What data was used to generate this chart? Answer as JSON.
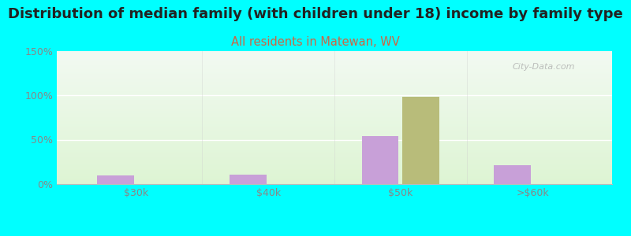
{
  "title": "Distribution of median family (with children under 18) income by family type",
  "subtitle": "All residents in Matewan, WV",
  "categories": [
    "$30k",
    "$40k",
    "$50k",
    ">$60k"
  ],
  "married_couple": [
    10,
    11,
    54,
    21
  ],
  "female_no_husband": [
    0,
    0,
    98,
    0
  ],
  "bar_color_married": "#c8a0d8",
  "bar_color_female": "#b8bc7a",
  "ylim": [
    0,
    150
  ],
  "yticks": [
    0,
    50,
    100,
    150
  ],
  "ytick_labels": [
    "0%",
    "50%",
    "100%",
    "150%"
  ],
  "bg_color": "#00ffff",
  "title_fontsize": 13,
  "subtitle_fontsize": 10.5,
  "subtitle_color": "#cc6644",
  "title_color": "#222222",
  "tick_label_color": "#888888",
  "watermark": "City-Data.com",
  "bar_width": 0.28,
  "grid_color": "#dddddd"
}
